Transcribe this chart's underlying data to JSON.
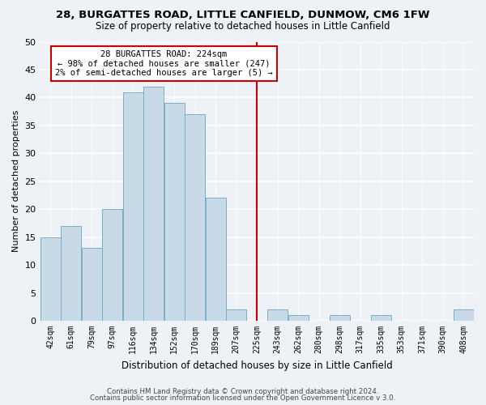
{
  "title1": "28, BURGATTES ROAD, LITTLE CANFIELD, DUNMOW, CM6 1FW",
  "title2": "Size of property relative to detached houses in Little Canfield",
  "xlabel": "Distribution of detached houses by size in Little Canfield",
  "ylabel": "Number of detached properties",
  "footer1": "Contains HM Land Registry data © Crown copyright and database right 2024.",
  "footer2": "Contains public sector information licensed under the Open Government Licence v 3.0.",
  "bin_labels": [
    "42sqm",
    "61sqm",
    "79sqm",
    "97sqm",
    "116sqm",
    "134sqm",
    "152sqm",
    "170sqm",
    "189sqm",
    "207sqm",
    "225sqm",
    "243sqm",
    "262sqm",
    "280sqm",
    "298sqm",
    "317sqm",
    "335sqm",
    "353sqm",
    "371sqm",
    "390sqm",
    "408sqm"
  ],
  "bar_heights": [
    15,
    17,
    13,
    20,
    41,
    42,
    39,
    37,
    22,
    2,
    0,
    2,
    1,
    0,
    1,
    0,
    1,
    0,
    0,
    0,
    2
  ],
  "bar_color": "#c8d9e8",
  "bar_edge_color": "#7aaec8",
  "vline_x_label": "225sqm",
  "vline_color": "#cc0000",
  "annotation_title": "28 BURGATTES ROAD: 224sqm",
  "annotation_line1": "← 98% of detached houses are smaller (247)",
  "annotation_line2": "2% of semi-detached houses are larger (5) →",
  "annotation_box_color": "#ffffff",
  "annotation_border_color": "#cc0000",
  "ylim": [
    0,
    50
  ],
  "background_color": "#eef2f7"
}
